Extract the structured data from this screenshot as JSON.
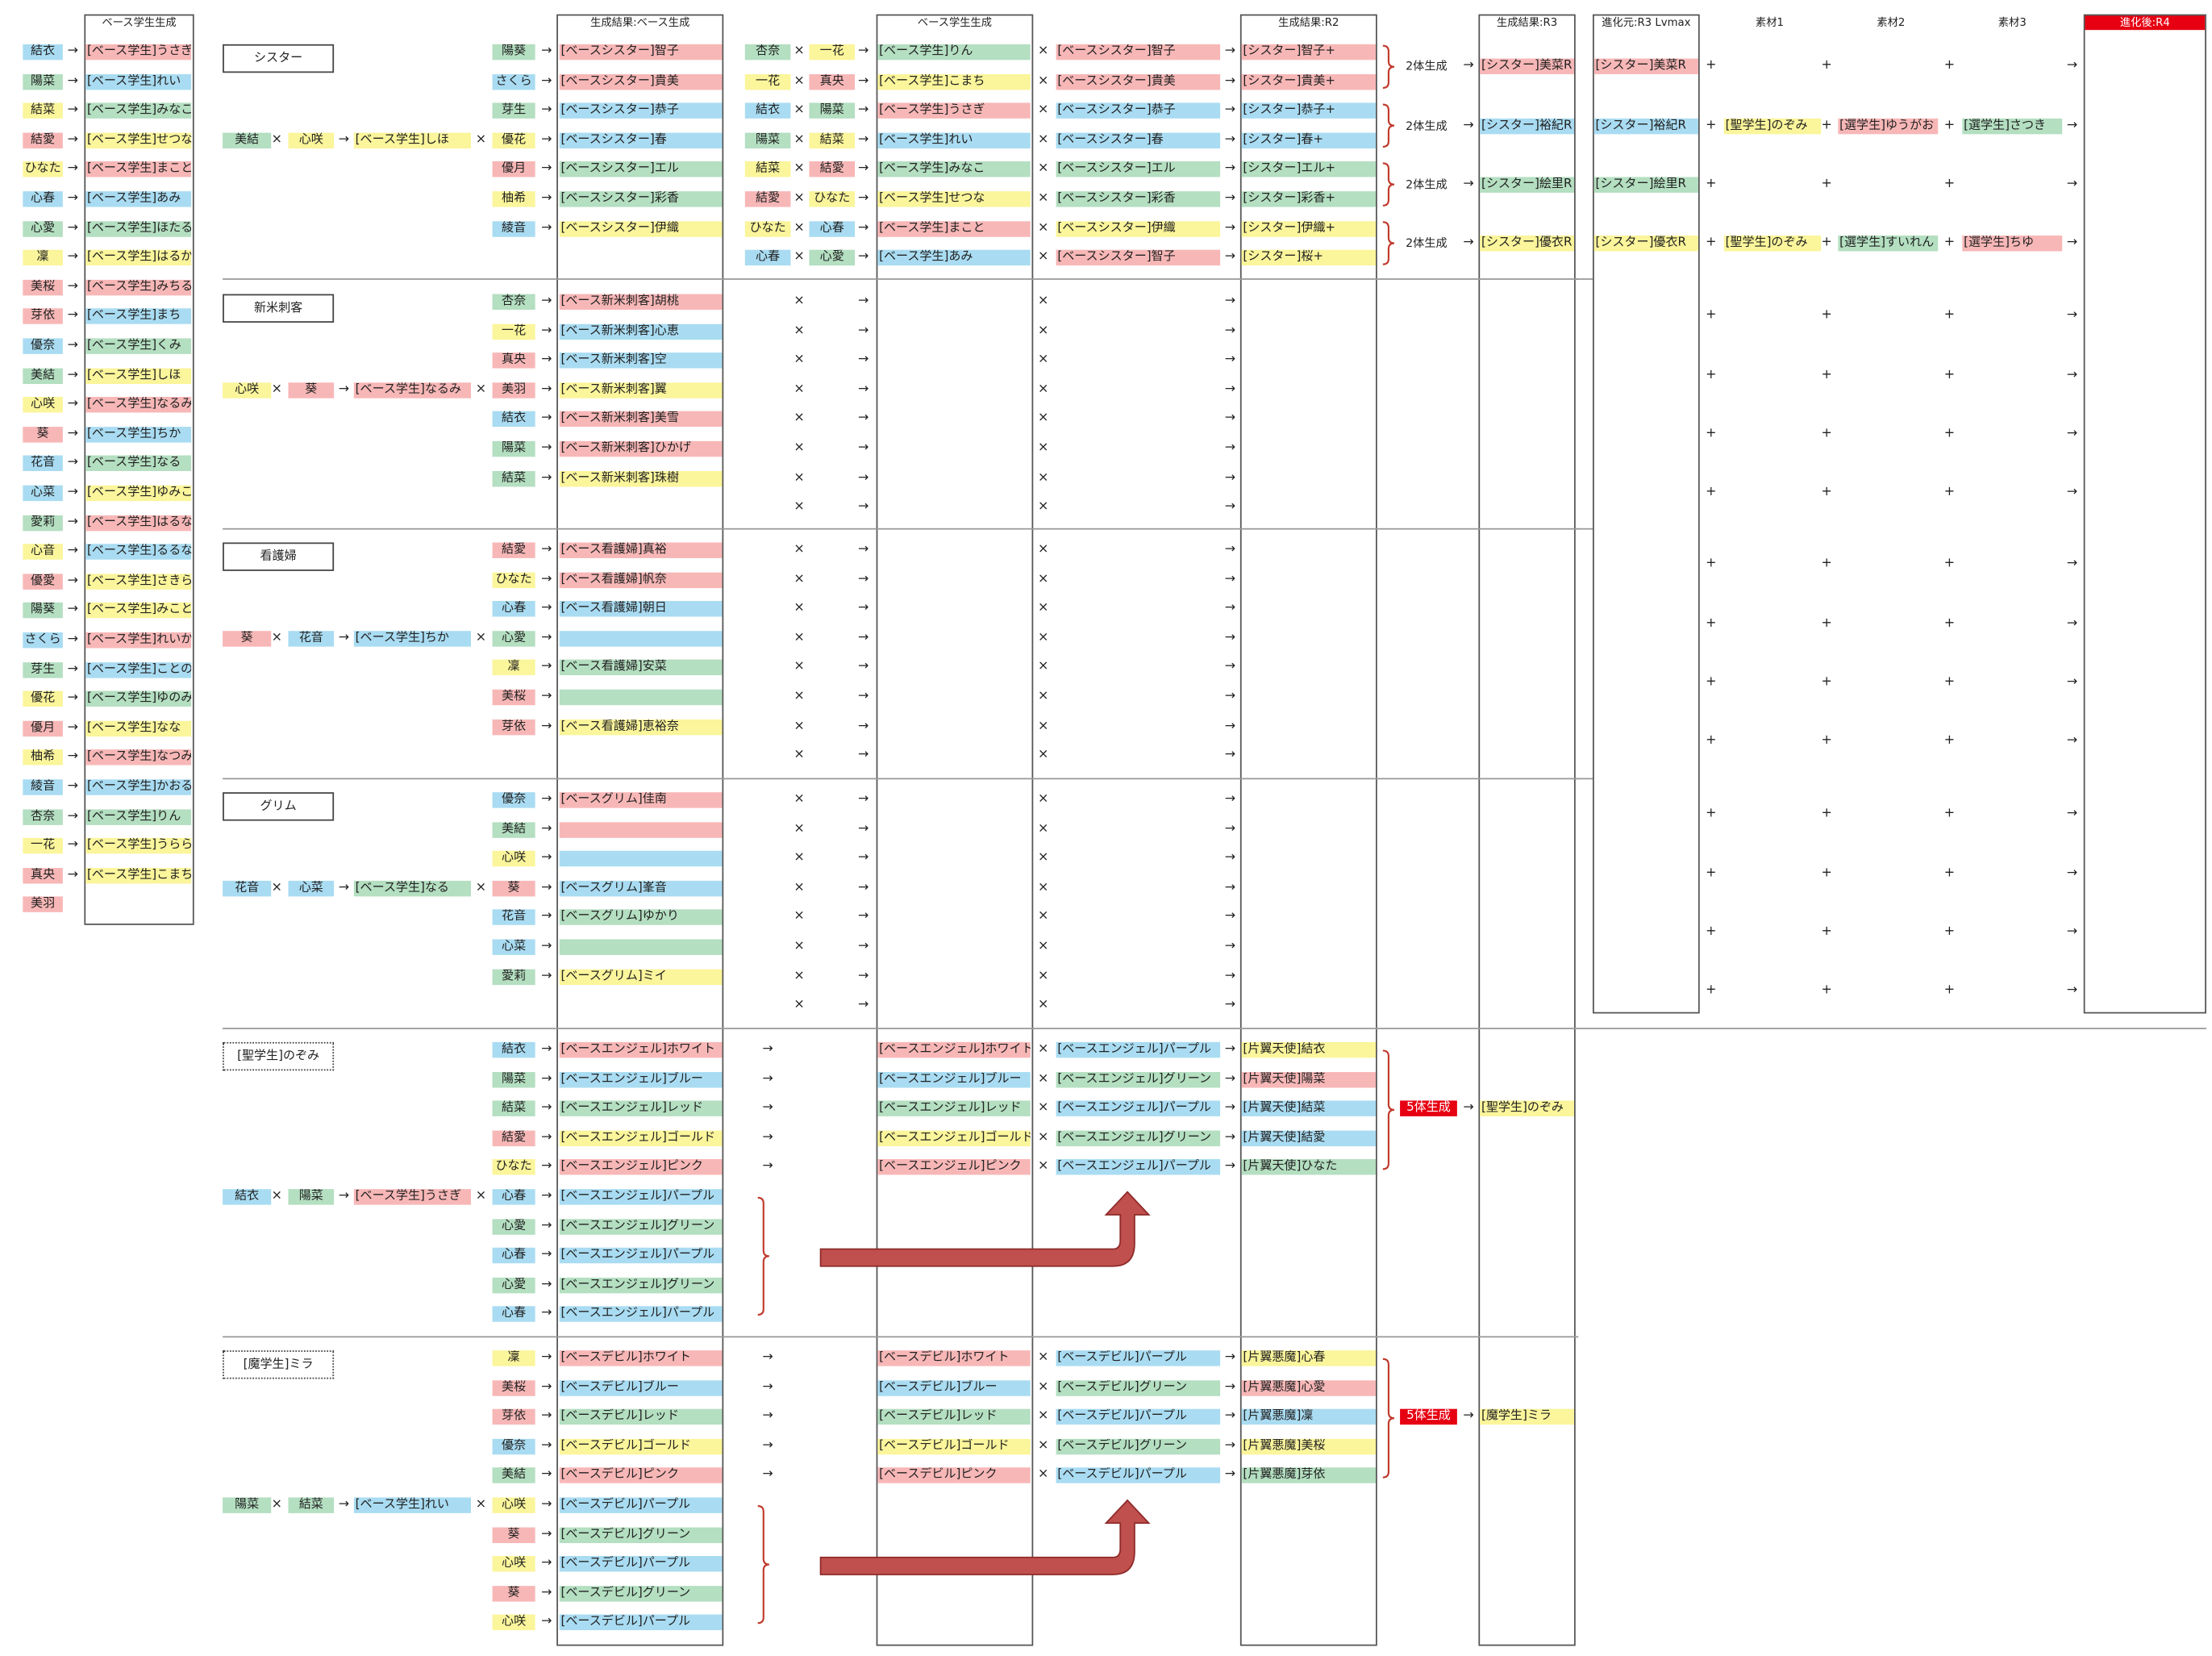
{
  "headers": {
    "base_gen": "ベース学生生成",
    "gen_result_base": "生成結果:ベース生成",
    "base_gen2": "ベース学生生成",
    "gen_result_r2": "生成結果:R2",
    "gen_result_r3": "生成結果:R3",
    "evo_src": "進化元:R3 Lvmax",
    "mat1": "素材1",
    "mat2": "素材2",
    "mat3": "素材3",
    "evo_after": "進化後:R4"
  },
  "symbols": {
    "times": "×",
    "arrow": "→",
    "plus": "+"
  },
  "left_list": [
    {
      "src": "結衣",
      "src_color": "blue",
      "res": "[ベース学生]うさぎ",
      "res_color": "pink"
    },
    {
      "src": "陽菜",
      "src_color": "green",
      "res": "[ベース学生]れい",
      "res_color": "blue"
    },
    {
      "src": "結菜",
      "src_color": "yellow",
      "res": "[ベース学生]みなこ",
      "res_color": "green"
    },
    {
      "src": "結愛",
      "src_color": "pink",
      "res": "[ベース学生]せつな",
      "res_color": "yellow"
    },
    {
      "src": "ひなた",
      "src_color": "yellow",
      "res": "[ベース学生]まこと",
      "res_color": "pink"
    },
    {
      "src": "心春",
      "src_color": "blue",
      "res": "[ベース学生]あみ",
      "res_color": "blue"
    },
    {
      "src": "心愛",
      "src_color": "green",
      "res": "[ベース学生]ほたる",
      "res_color": "green"
    },
    {
      "src": "凜",
      "src_color": "yellow",
      "res": "[ベース学生]はるか",
      "res_color": "yellow"
    },
    {
      "src": "美桜",
      "src_color": "pink",
      "res": "[ベース学生]みちる",
      "res_color": "pink"
    },
    {
      "src": "芽依",
      "src_color": "pink",
      "res": "[ベース学生]まち",
      "res_color": "blue"
    },
    {
      "src": "優奈",
      "src_color": "blue",
      "res": "[ベース学生]くみ",
      "res_color": "green"
    },
    {
      "src": "美結",
      "src_color": "green",
      "res": "[ベース学生]しほ",
      "res_color": "yellow"
    },
    {
      "src": "心咲",
      "src_color": "yellow",
      "res": "[ベース学生]なるみ",
      "res_color": "pink"
    },
    {
      "src": "葵",
      "src_color": "pink",
      "res": "[ベース学生]ちか",
      "res_color": "blue"
    },
    {
      "src": "花音",
      "src_color": "blue",
      "res": "[ベース学生]なる",
      "res_color": "green"
    },
    {
      "src": "心菜",
      "src_color": "blue",
      "res": "[ベース学生]ゆみこ",
      "res_color": "yellow"
    },
    {
      "src": "愛莉",
      "src_color": "green",
      "res": "[ベース学生]はるな",
      "res_color": "pink"
    },
    {
      "src": "心音",
      "src_color": "yellow",
      "res": "[ベース学生]るるな",
      "res_color": "blue"
    },
    {
      "src": "優愛",
      "src_color": "pink",
      "res": "[ベース学生]さきら",
      "res_color": "yellow"
    },
    {
      "src": "陽葵",
      "src_color": "green",
      "res": "[ベース学生]みこと",
      "res_color": "yellow"
    },
    {
      "src": "さくら",
      "src_color": "blue",
      "res": "[ベース学生]れいか",
      "res_color": "pink"
    },
    {
      "src": "芽生",
      "src_color": "green",
      "res": "[ベース学生]ことの",
      "res_color": "blue"
    },
    {
      "src": "優花",
      "src_color": "yellow",
      "res": "[ベース学生]ゆのみ",
      "res_color": "green"
    },
    {
      "src": "優月",
      "src_color": "pink",
      "res": "[ベース学生]なな",
      "res_color": "yellow"
    },
    {
      "src": "柚希",
      "src_color": "yellow",
      "res": "[ベース学生]なつみ",
      "res_color": "pink"
    },
    {
      "src": "綾音",
      "src_color": "blue",
      "res": "[ベース学生]かおる",
      "res_color": "blue"
    },
    {
      "src": "杏奈",
      "src_color": "green",
      "res": "[ベース学生]りん",
      "res_color": "green"
    },
    {
      "src": "一花",
      "src_color": "yellow",
      "res": "[ベース学生]うらら",
      "res_color": "yellow"
    },
    {
      "src": "真央",
      "src_color": "pink",
      "res": "[ベース学生]こまち",
      "res_color": "yellow"
    },
    {
      "src": "美羽",
      "src_color": "pink",
      "res": "",
      "res_color": ""
    }
  ],
  "sections": [
    {
      "label": "シスター",
      "combo": [
        {
          "t": "美結",
          "c": "green"
        },
        {
          "t": "心咲",
          "c": "yellow"
        },
        {
          "t": "[ベース学生]しほ",
          "c": "yellow"
        }
      ],
      "rows": [
        {
          "src": "陽葵",
          "sc": "green",
          "res": "[ベースシスター]智子",
          "rc": "pink"
        },
        {
          "src": "さくら",
          "sc": "blue",
          "res": "[ベースシスター]貴美",
          "rc": "pink"
        },
        {
          "src": "芽生",
          "sc": "green",
          "res": "[ベースシスター]恭子",
          "rc": "blue"
        },
        {
          "src": "優花",
          "sc": "yellow",
          "res": "[ベースシスター]春",
          "rc": "blue"
        },
        {
          "src": "優月",
          "sc": "pink",
          "res": "[ベースシスター]エル",
          "rc": "green"
        },
        {
          "src": "柚希",
          "sc": "yellow",
          "res": "[ベースシスター]彩香",
          "rc": "green"
        },
        {
          "src": "綾音",
          "sc": "blue",
          "res": "[ベースシスター]伊織",
          "rc": "yellow"
        }
      ],
      "mid": [
        {
          "a": "杏奈",
          "ac": "green",
          "b": "一花",
          "bc": "yellow",
          "r": "[ベース学生]りん",
          "rc": "green",
          "p": "[ベースシスター]智子",
          "pc": "pink",
          "o": "[シスター]智子+",
          "oc": "pink"
        },
        {
          "a": "一花",
          "ac": "yellow",
          "b": "真央",
          "bc": "pink",
          "r": "[ベース学生]こまち",
          "rc": "yellow",
          "p": "[ベースシスター]貴美",
          "pc": "pink",
          "o": "[シスター]貴美+",
          "oc": "pink"
        },
        {
          "a": "結衣",
          "ac": "blue",
          "b": "陽菜",
          "bc": "green",
          "r": "[ベース学生]うさぎ",
          "rc": "pink",
          "p": "[ベースシスター]恭子",
          "pc": "blue",
          "o": "[シスター]恭子+",
          "oc": "blue"
        },
        {
          "a": "陽菜",
          "ac": "green",
          "b": "結菜",
          "bc": "yellow",
          "r": "[ベース学生]れい",
          "rc": "blue",
          "p": "[ベースシスター]春",
          "pc": "blue",
          "o": "[シスター]春+",
          "oc": "blue"
        },
        {
          "a": "結菜",
          "ac": "yellow",
          "b": "結愛",
          "bc": "pink",
          "r": "[ベース学生]みなこ",
          "rc": "green",
          "p": "[ベースシスター]エル",
          "pc": "green",
          "o": "[シスター]エル+",
          "oc": "green"
        },
        {
          "a": "結愛",
          "ac": "pink",
          "b": "ひなた",
          "bc": "yellow",
          "r": "[ベース学生]せつな",
          "rc": "yellow",
          "p": "[ベースシスター]彩香",
          "pc": "green",
          "o": "[シスター]彩香+",
          "oc": "green"
        },
        {
          "a": "ひなた",
          "ac": "yellow",
          "b": "心春",
          "bc": "blue",
          "r": "[ベース学生]まこと",
          "rc": "pink",
          "p": "[ベースシスター]伊織",
          "pc": "yellow",
          "o": "[シスター]伊織+",
          "oc": "yellow"
        },
        {
          "a": "心春",
          "ac": "blue",
          "b": "心愛",
          "bc": "green",
          "r": "[ベース学生]あみ",
          "rc": "blue",
          "p": "[ベースシスター]智子",
          "pc": "pink",
          "o": "[シスター]桜+",
          "oc": "yellow"
        }
      ],
      "pairs": [
        {
          "note": "2体生成",
          "r3": "[シスター]美菜R",
          "r3c": "pink",
          "src": "[シスター]美菜R",
          "srcc": "pink",
          "m1": "",
          "m1c": "",
          "m2": "",
          "m2c": "",
          "m3": "",
          "m3c": ""
        },
        {
          "note": "2体生成",
          "r3": "[シスター]裕紀R",
          "r3c": "blue",
          "src": "[シスター]裕紀R",
          "srcc": "blue",
          "m1": "[聖学生]のぞみ",
          "m1c": "yellow",
          "m2": "[選学生]ゆうがお",
          "m2c": "pink",
          "m3": "[選学生]さつき",
          "m3c": "green"
        },
        {
          "note": "2体生成",
          "r3": "[シスター]絵里R",
          "r3c": "green",
          "src": "[シスター]絵里R",
          "srcc": "green",
          "m1": "",
          "m1c": "",
          "m2": "",
          "m2c": "",
          "m3": "",
          "m3c": ""
        },
        {
          "note": "2体生成",
          "r3": "[シスター]優衣R",
          "r3c": "yellow",
          "src": "[シスター]優衣R",
          "srcc": "yellow",
          "m1": "[聖学生]のぞみ",
          "m1c": "yellow",
          "m2": "[選学生]すいれん",
          "m2c": "green",
          "m3": "[選学生]ちゆ",
          "m3c": "pink"
        }
      ]
    },
    {
      "label": "新米刺客",
      "combo": [
        {
          "t": "心咲",
          "c": "yellow"
        },
        {
          "t": "葵",
          "c": "pink"
        },
        {
          "t": "[ベース学生]なるみ",
          "c": "pink"
        }
      ],
      "rows": [
        {
          "src": "杏奈",
          "sc": "green",
          "res": "[ベース新米刺客]胡桃",
          "rc": "pink"
        },
        {
          "src": "一花",
          "sc": "yellow",
          "res": "[ベース新米刺客]心恵",
          "rc": "blue"
        },
        {
          "src": "真央",
          "sc": "pink",
          "res": "[ベース新米刺客]空",
          "rc": "blue"
        },
        {
          "src": "美羽",
          "sc": "pink",
          "res": "[ベース新米刺客]翼",
          "rc": "yellow"
        },
        {
          "src": "結衣",
          "sc": "blue",
          "res": "[ベース新米刺客]美雪",
          "rc": "pink"
        },
        {
          "src": "陽菜",
          "sc": "green",
          "res": "[ベース新米刺客]ひかげ",
          "rc": "pink"
        },
        {
          "src": "結菜",
          "sc": "green",
          "res": "[ベース新米刺客]珠樹",
          "rc": "yellow"
        }
      ]
    },
    {
      "label": "看護婦",
      "combo": [
        {
          "t": "葵",
          "c": "pink"
        },
        {
          "t": "花音",
          "c": "blue"
        },
        {
          "t": "[ベース学生]ちか",
          "c": "blue"
        }
      ],
      "rows": [
        {
          "src": "結愛",
          "sc": "pink",
          "res": "[ベース看護婦]真裕",
          "rc": "pink"
        },
        {
          "src": "ひなた",
          "sc": "yellow",
          "res": "[ベース看護婦]帆奈",
          "rc": "pink"
        },
        {
          "src": "心春",
          "sc": "blue",
          "res": "[ベース看護婦]朝日",
          "rc": "blue"
        },
        {
          "src": "心愛",
          "sc": "green",
          "res": "",
          "rc": "blue"
        },
        {
          "src": "凜",
          "sc": "yellow",
          "res": "[ベース看護婦]安菜",
          "rc": "green"
        },
        {
          "src": "美桜",
          "sc": "pink",
          "res": "",
          "rc": "green"
        },
        {
          "src": "芽依",
          "sc": "pink",
          "res": "[ベース看護婦]恵裕奈",
          "rc": "yellow"
        }
      ]
    },
    {
      "label": "グリム",
      "combo": [
        {
          "t": "花音",
          "c": "blue"
        },
        {
          "t": "心菜",
          "c": "blue"
        },
        {
          "t": "[ベース学生]なる",
          "c": "green"
        }
      ],
      "rows": [
        {
          "src": "優奈",
          "sc": "blue",
          "res": "[ベースグリム]佳南",
          "rc": "pink"
        },
        {
          "src": "美結",
          "sc": "green",
          "res": "",
          "rc": "pink"
        },
        {
          "src": "心咲",
          "sc": "yellow",
          "res": "",
          "rc": "blue"
        },
        {
          "src": "葵",
          "sc": "pink",
          "res": "[ベースグリム]峯音",
          "rc": "blue"
        },
        {
          "src": "花音",
          "sc": "blue",
          "res": "[ベースグリム]ゆかり",
          "rc": "green"
        },
        {
          "src": "心菜",
          "sc": "blue",
          "res": "",
          "rc": "green"
        },
        {
          "src": "愛莉",
          "sc": "green",
          "res": "[ベースグリム]ミイ",
          "rc": "yellow"
        }
      ]
    },
    {
      "label": "[聖学生]のぞみ",
      "combo": [
        {
          "t": "結衣",
          "c": "blue"
        },
        {
          "t": "陽菜",
          "c": "green"
        },
        {
          "t": "[ベース学生]うさぎ",
          "c": "pink"
        }
      ],
      "rows": [
        {
          "src": "結衣",
          "sc": "blue",
          "res": "[ベースエンジェル]ホワイト",
          "rc": "pink"
        },
        {
          "src": "陽菜",
          "sc": "green",
          "res": "[ベースエンジェル]ブルー",
          "rc": "blue"
        },
        {
          "src": "結菜",
          "sc": "green",
          "res": "[ベースエンジェル]レッド",
          "rc": "green"
        },
        {
          "src": "結愛",
          "sc": "pink",
          "res": "[ベースエンジェル]ゴールド",
          "rc": "yellow"
        },
        {
          "src": "ひなた",
          "sc": "yellow",
          "res": "[ベースエンジェル]ピンク",
          "rc": "pink"
        },
        {
          "src": "心春",
          "sc": "blue",
          "res": "[ベースエンジェル]パープル",
          "rc": "blue"
        },
        {
          "src": "心愛",
          "sc": "green",
          "res": "[ベースエンジェル]グリーン",
          "rc": "green"
        },
        {
          "src": "心春",
          "sc": "blue",
          "res": "[ベースエンジェル]パープル",
          "rc": "blue"
        },
        {
          "src": "心愛",
          "sc": "green",
          "res": "[ベースエンジェル]グリーン",
          "rc": "green"
        },
        {
          "src": "心春",
          "sc": "blue",
          "res": "[ベースエンジェル]パープル",
          "rc": "blue"
        }
      ],
      "mid": [
        {
          "r": "[ベースエンジェル]ホワイト",
          "rc": "pink",
          "p": "[ベースエンジェル]パープル",
          "pc": "blue",
          "o": "[片翼天使]結衣",
          "oc": "yellow"
        },
        {
          "r": "[ベースエンジェル]ブルー",
          "rc": "blue",
          "p": "[ベースエンジェル]グリーン",
          "pc": "green",
          "o": "[片翼天使]陽菜",
          "oc": "pink"
        },
        {
          "r": "[ベースエンジェル]レッド",
          "rc": "green",
          "p": "[ベースエンジェル]パープル",
          "pc": "blue",
          "o": "[片翼天使]結菜",
          "oc": "blue"
        },
        {
          "r": "[ベースエンジェル]ゴールド",
          "rc": "yellow",
          "p": "[ベースエンジェル]グリーン",
          "pc": "green",
          "o": "[片翼天使]結愛",
          "oc": "blue"
        },
        {
          "r": "[ベースエンジェル]ピンク",
          "rc": "pink",
          "p": "[ベースエンジェル]パープル",
          "pc": "blue",
          "o": "[片翼天使]ひなた",
          "oc": "green"
        }
      ],
      "gen5": "5体生成",
      "final": "[聖学生]のぞみ"
    },
    {
      "label": "[魔学生]ミラ",
      "combo": [
        {
          "t": "陽菜",
          "c": "green"
        },
        {
          "t": "結菜",
          "c": "green"
        },
        {
          "t": "[ベース学生]れい",
          "c": "blue"
        }
      ],
      "rows": [
        {
          "src": "凜",
          "sc": "yellow",
          "res": "[ベースデビル]ホワイト",
          "rc": "pink"
        },
        {
          "src": "美桜",
          "sc": "pink",
          "res": "[ベースデビル]ブルー",
          "rc": "blue"
        },
        {
          "src": "芽依",
          "sc": "pink",
          "res": "[ベースデビル]レッド",
          "rc": "green"
        },
        {
          "src": "優奈",
          "sc": "blue",
          "res": "[ベースデビル]ゴールド",
          "rc": "yellow"
        },
        {
          "src": "美結",
          "sc": "green",
          "res": "[ベースデビル]ピンク",
          "rc": "pink"
        },
        {
          "src": "心咲",
          "sc": "yellow",
          "res": "[ベースデビル]パープル",
          "rc": "blue"
        },
        {
          "src": "葵",
          "sc": "pink",
          "res": "[ベースデビル]グリーン",
          "rc": "green"
        },
        {
          "src": "心咲",
          "sc": "yellow",
          "res": "[ベースデビル]パープル",
          "rc": "blue"
        },
        {
          "src": "葵",
          "sc": "pink",
          "res": "[ベースデビル]グリーン",
          "rc": "green"
        },
        {
          "src": "心咲",
          "sc": "yellow",
          "res": "[ベースデビル]パープル",
          "rc": "blue"
        }
      ],
      "mid": [
        {
          "r": "[ベースデビル]ホワイト",
          "rc": "pink",
          "p": "[ベースデビル]パープル",
          "pc": "blue",
          "o": "[片翼悪魔]心春",
          "oc": "yellow"
        },
        {
          "r": "[ベースデビル]ブルー",
          "rc": "blue",
          "p": "[ベースデビル]グリーン",
          "pc": "green",
          "o": "[片翼悪魔]心愛",
          "oc": "pink"
        },
        {
          "r": "[ベースデビル]レッド",
          "rc": "green",
          "p": "[ベースデビル]パープル",
          "pc": "blue",
          "o": "[片翼悪魔]凜",
          "oc": "blue"
        },
        {
          "r": "[ベースデビル]ゴールド",
          "rc": "yellow",
          "p": "[ベースデビル]グリーン",
          "pc": "green",
          "o": "[片翼悪魔]美桜",
          "oc": "yellow"
        },
        {
          "r": "[ベースデビル]ピンク",
          "rc": "pink",
          "p": "[ベースデビル]パープル",
          "pc": "blue",
          "o": "[片翼悪魔]芽依",
          "oc": "green"
        }
      ],
      "gen5": "5体生成",
      "final": "[魔学生]ミラ"
    }
  ]
}
